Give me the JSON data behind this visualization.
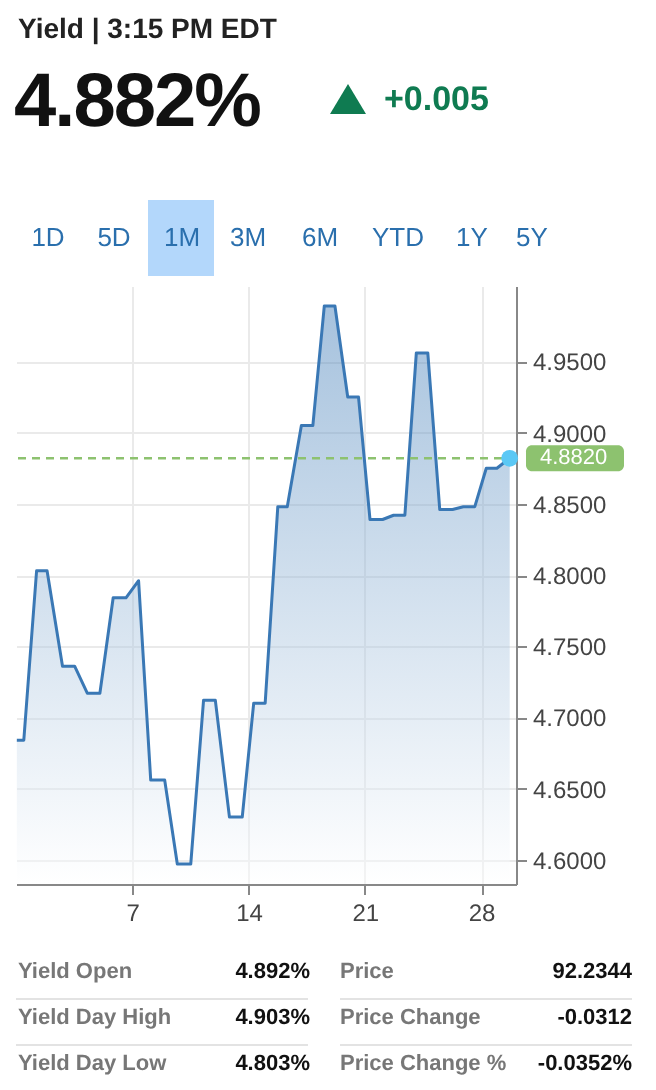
{
  "chart_data": {
    "type": "area",
    "title": "Yield | 3:15 PM EDT",
    "x": [
      0.05,
      0.47,
      1.24,
      1.87,
      2.8,
      3.53,
      4.29,
      5.05,
      5.85,
      6.62,
      7.38,
      8.11,
      8.95,
      9.71,
      10.52,
      11.29,
      12.0,
      12.85,
      13.62,
      14.31,
      15.0,
      15.76,
      16.33,
      17.18,
      17.87,
      18.56,
      19.2,
      19.97,
      20.62,
      21.31,
      22.07,
      22.73,
      23.41,
      24.1,
      24.79,
      25.51,
      26.28,
      26.93,
      27.62,
      28.31,
      28.95,
      29.72
    ],
    "series": [
      {
        "color": "#3a78b5",
        "values": [
          4.684,
          4.684,
          4.803,
          4.803,
          4.736,
          4.736,
          4.717,
          4.717,
          4.784,
          4.784,
          4.796,
          4.656,
          4.656,
          4.597,
          4.597,
          4.712,
          4.712,
          4.63,
          4.63,
          4.71,
          4.71,
          4.848,
          4.848,
          4.905,
          4.905,
          4.989,
          4.989,
          4.925,
          4.925,
          4.839,
          4.839,
          4.842,
          4.842,
          4.956,
          4.956,
          4.846,
          4.846,
          4.848,
          4.848,
          4.875,
          4.875,
          4.882
        ]
      },
      {
        "type": "scatter",
        "color": "#5bc8f5",
        "x": [
          29.72
        ],
        "values": [
          4.882
        ]
      }
    ],
    "xlim": [
      0,
      30.1
    ],
    "xticks": [
      7,
      14,
      21,
      28
    ],
    "ylim": [
      4.583,
      5.003
    ],
    "yticks": [
      {
        "value": 4.6,
        "label": "4.6000"
      },
      {
        "value": 4.65,
        "label": "4.6500"
      },
      {
        "value": 4.7,
        "label": "4.7000"
      },
      {
        "value": 4.75,
        "label": "4.7500"
      },
      {
        "value": 4.8,
        "label": "4.8000"
      },
      {
        "value": 4.85,
        "label": "4.8500"
      },
      {
        "value": 4.9,
        "label": "4.9000"
      },
      {
        "value": 4.95,
        "label": "4.9500"
      }
    ],
    "grid": true,
    "ref_lines": [
      {
        "axis": "y",
        "value": 4.882,
        "label": "4.8820",
        "color": "#8dc26f",
        "line_style": "dashed"
      }
    ],
    "annotations": [
      "4.882%",
      "+0.005",
      "1D",
      "5D",
      "1M",
      "3M",
      "6M",
      "YTD",
      "1Y",
      "5Y",
      "Yield Open",
      "4.892%",
      "Price",
      "92.2344",
      "Yield Day High",
      "4.903%",
      "Price Change",
      "-0.0312",
      "Yield Day Low",
      "4.803%",
      "Price Change %",
      "-0.0352%"
    ]
  }
}
